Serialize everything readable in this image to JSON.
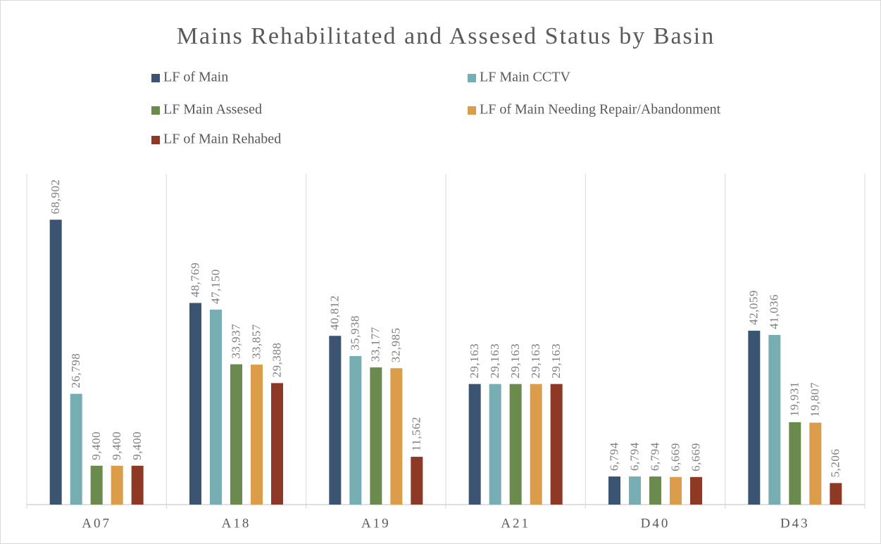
{
  "chart_data": {
    "type": "bar",
    "title": "Mains Rehabilitated and Assesed Status by Basin",
    "categories": [
      "A07",
      "A18",
      "A19",
      "A21",
      "D40",
      "D43"
    ],
    "ylim": [
      0,
      80000
    ],
    "series": [
      {
        "name": "LF of Main",
        "color": "#3b5472",
        "values": [
          68902,
          48769,
          40812,
          29163,
          6794,
          42059
        ],
        "value_labels": [
          "68,902",
          "48,769",
          "40,812",
          "29,163",
          "6,794",
          "42,059"
        ]
      },
      {
        "name": "LF Main CCTV",
        "color": "#77aeb3",
        "values": [
          26798,
          47150,
          35938,
          29163,
          6794,
          41036
        ],
        "value_labels": [
          "26,798",
          "47,150",
          "35,938",
          "29,163",
          "6,794",
          "41,036"
        ]
      },
      {
        "name": "LF Main Assesed",
        "color": "#6a8a4e",
        "values": [
          9400,
          33937,
          33177,
          29163,
          6794,
          19931
        ],
        "value_labels": [
          "9,400",
          "33,937",
          "33,177",
          "29,163",
          "6,794",
          "19,931"
        ]
      },
      {
        "name": "LF of Main Needing Repair/Abandonment",
        "color": "#dc9d4a",
        "values": [
          9400,
          33857,
          32985,
          29163,
          6669,
          19807
        ],
        "value_labels": [
          "9,400",
          "33,857",
          "32,985",
          "29,163",
          "6,669",
          "19,807"
        ]
      },
      {
        "name": "LF of Main Rehabed",
        "color": "#8e3826",
        "values": [
          9400,
          29388,
          11562,
          29163,
          6669,
          5206
        ],
        "value_labels": [
          "9,400",
          "29,388",
          "11,562",
          "29,163",
          "6,669",
          "5,206"
        ]
      }
    ]
  }
}
